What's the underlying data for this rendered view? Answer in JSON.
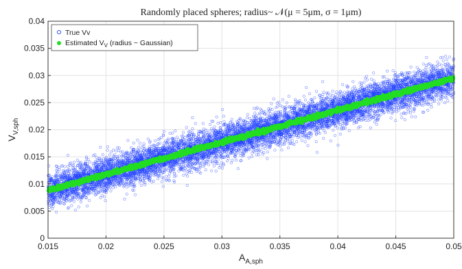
{
  "chart_data": {
    "type": "scatter",
    "title": "Randomly placed spheres; radius~ 𝒩(μ = 5μm, σ = 1μm)",
    "xlabel": {
      "main": "A",
      "sub": "A,sph"
    },
    "ylabel": {
      "main": "V",
      "sub": "V,sph"
    },
    "xlim": [
      0.015,
      0.05
    ],
    "ylim": [
      0,
      0.04
    ],
    "xticks": [
      "0.015",
      "0.02",
      "0.025",
      "0.03",
      "0.035",
      "0.04",
      "0.045",
      "0.05"
    ],
    "yticks": [
      "0",
      "0.005",
      "0.01",
      "0.015",
      "0.02",
      "0.025",
      "0.03",
      "0.035",
      "0.04"
    ],
    "grid": true,
    "legend_position": "top-left",
    "series": [
      {
        "name": "True Vv",
        "marker": "open-circle",
        "color": "#1f3fff",
        "trend": {
          "x": [
            0.015,
            0.05
          ],
          "y": [
            0.0088,
            0.0295
          ]
        },
        "spread_sd": 0.0016,
        "approx_points": 9000
      },
      {
        "name_main": "Estimated V",
        "name_sub": "V",
        "name_rest": " (radius ~ Gaussian)",
        "marker": "filled-circle",
        "color": "#22dd22",
        "trend": {
          "x": [
            0.015,
            0.05
          ],
          "y": [
            0.0088,
            0.0295
          ]
        },
        "spread_sd": 0.00018,
        "approx_points": 5000
      }
    ]
  }
}
